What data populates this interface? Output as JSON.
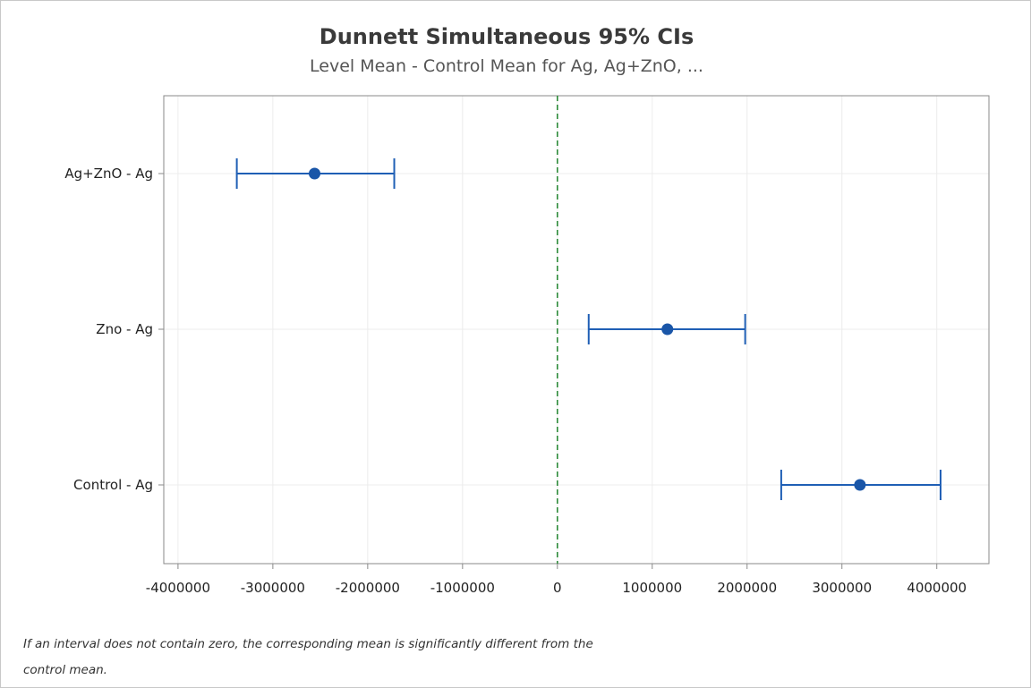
{
  "chart_data": {
    "type": "interval",
    "title": "Dunnett Simultaneous 95% CIs",
    "subtitle": "Level Mean - Control Mean for Ag, Ag+ZnO, ...",
    "xlim": [
      -4150000,
      4550000
    ],
    "x_ticks": [
      -4000000,
      -3000000,
      -2000000,
      -1000000,
      0,
      1000000,
      2000000,
      3000000,
      4000000
    ],
    "x_tick_labels": [
      "-4000000",
      "-3000000",
      "-2000000",
      "-1000000",
      "0",
      "1000000",
      "2000000",
      "3000000",
      "4000000"
    ],
    "reference_line": 0,
    "grid": true,
    "intervals": [
      {
        "label": "Ag+ZnO - Ag",
        "lower": -3380000,
        "mean": -2560000,
        "upper": -1720000
      },
      {
        "label": "Zno - Ag",
        "lower": 330000,
        "mean": 1160000,
        "upper": 1980000
      },
      {
        "label": "Control - Ag",
        "lower": 2360000,
        "mean": 3190000,
        "upper": 4040000
      }
    ],
    "colors": {
      "interval": "#1f5fb5",
      "point": "#1a56a8",
      "reference_line": "#2e8b3a",
      "grid": "#ececec",
      "axis_frame": "#8a8a8a"
    }
  },
  "footnote": {
    "line1": "If an interval does not contain zero, the corresponding mean is significantly different from the",
    "line2": "control mean."
  }
}
